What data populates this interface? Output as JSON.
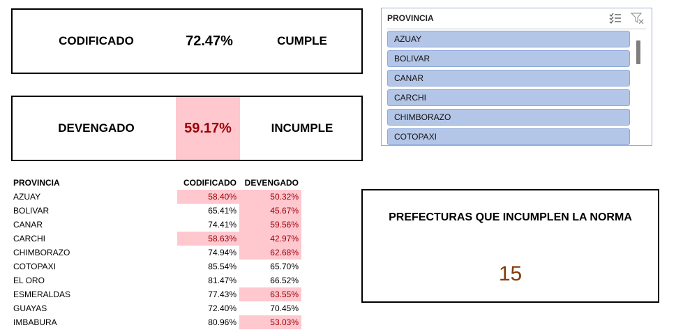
{
  "kpis": [
    {
      "label": "CODIFICADO",
      "value": "72.47%",
      "status": "CUMPLE"
    },
    {
      "label": "DEVENGADO",
      "value": "59.17%",
      "status": "INCUMPLE"
    }
  ],
  "slicer": {
    "title": "PROVINCIA",
    "items": [
      "AZUAY",
      "BOLIVAR",
      "CANAR",
      "CARCHI",
      "CHIMBORAZO",
      "COTOPAXI"
    ]
  },
  "table": {
    "headers": [
      "PROVINCIA",
      "CODIFICADO",
      "DEVENGADO"
    ],
    "rows": [
      {
        "provincia": "AZUAY",
        "codificado": "58.40%",
        "devengado": "50.32%"
      },
      {
        "provincia": "BOLIVAR",
        "codificado": "65.41%",
        "devengado": "45.67%"
      },
      {
        "provincia": "CANAR",
        "codificado": "74.41%",
        "devengado": "59.56%"
      },
      {
        "provincia": "CARCHI",
        "codificado": "58.63%",
        "devengado": "42.97%"
      },
      {
        "provincia": "CHIMBORAZO",
        "codificado": "74.94%",
        "devengado": "62.68%"
      },
      {
        "provincia": "COTOPAXI",
        "codificado": "85.54%",
        "devengado": "65.70%"
      },
      {
        "provincia": "EL ORO",
        "codificado": "81.47%",
        "devengado": "66.52%"
      },
      {
        "provincia": "ESMERALDAS",
        "codificado": "77.43%",
        "devengado": "63.55%"
      },
      {
        "provincia": "GUAYAS",
        "codificado": "72.40%",
        "devengado": "70.45%"
      },
      {
        "provincia": "IMBABURA",
        "codificado": "80.96%",
        "devengado": "53.03%"
      }
    ]
  },
  "count_card": {
    "title": "PREFECTURAS QUE INCUMPLEN LA NORMA",
    "value": "15"
  },
  "colors": {
    "bad_fill": "#ffc7ce",
    "bad_text": "#9c0006",
    "slicer_item": "#b4c6e7",
    "count_value": "#843c0c"
  },
  "icons": {
    "multiselect": "multi-select-icon",
    "clear_filter": "clear-filter-icon"
  }
}
